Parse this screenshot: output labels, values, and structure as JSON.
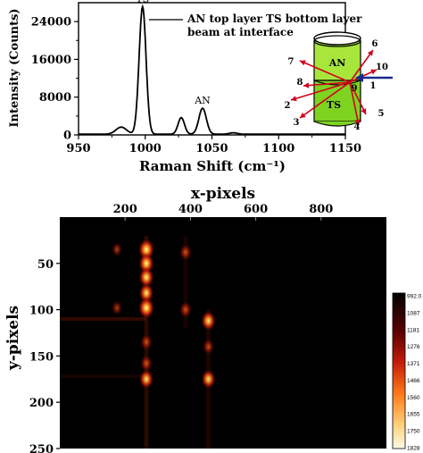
{
  "chart_data": [
    {
      "type": "line",
      "xlabel": "Raman Shift (cm⁻¹)",
      "ylabel": "Intensity (Counts)",
      "xlim": [
        950,
        1150
      ],
      "ylim": [
        0,
        28000
      ],
      "x_ticks": [
        950,
        1000,
        1050,
        1100,
        1150
      ],
      "y_ticks": [
        0,
        8000,
        16000,
        24000
      ],
      "peaks": [
        {
          "x": 982,
          "y": 1500
        },
        {
          "x": 998,
          "y": 27000,
          "label": "TS"
        },
        {
          "x": 1027,
          "y": 3500
        },
        {
          "x": 1043,
          "y": 5500,
          "label": "AN"
        },
        {
          "x": 1066,
          "y": 300
        }
      ],
      "series_color": "#000000",
      "annotation": {
        "line1": "AN top layer TS bottom layer",
        "line2": "beam at interface"
      },
      "inset": {
        "top_label": "AN",
        "bottom_label": "TS",
        "top_color": "#a8e63c",
        "bottom_color": "#7ed321",
        "arrow_color": "#d0021b",
        "beam_color": "#1a2a8a",
        "numbers": [
          "1",
          "2",
          "3",
          "4",
          "5",
          "6",
          "7",
          "8",
          "9",
          "10"
        ]
      }
    },
    {
      "type": "heatmap",
      "title": "x-pixels",
      "ylabel": "y-pixels",
      "xlim": [
        0,
        1000
      ],
      "ylim": [
        250,
        0
      ],
      "x_ticks": [
        200,
        400,
        600,
        800
      ],
      "y_ticks": [
        50,
        100,
        150,
        200,
        250
      ],
      "colorbar": {
        "labels": [
          "992.0",
          "1087",
          "1181",
          "1276",
          "1371",
          "1466",
          "1560",
          "1655",
          "1750",
          "1828"
        ]
      },
      "spots": [
        {
          "x": 265,
          "y": 35,
          "v": 1.0
        },
        {
          "x": 265,
          "y": 50,
          "v": 0.9
        },
        {
          "x": 265,
          "y": 65,
          "v": 0.85
        },
        {
          "x": 265,
          "y": 82,
          "v": 0.8
        },
        {
          "x": 265,
          "y": 98,
          "v": 1.0
        },
        {
          "x": 265,
          "y": 135,
          "v": 0.5
        },
        {
          "x": 265,
          "y": 158,
          "v": 0.55
        },
        {
          "x": 265,
          "y": 175,
          "v": 0.75
        },
        {
          "x": 385,
          "y": 38,
          "v": 0.55
        },
        {
          "x": 385,
          "y": 100,
          "v": 0.55
        },
        {
          "x": 455,
          "y": 112,
          "v": 0.8
        },
        {
          "x": 455,
          "y": 140,
          "v": 0.45
        },
        {
          "x": 455,
          "y": 175,
          "v": 0.75
        },
        {
          "x": 175,
          "y": 35,
          "v": 0.3
        },
        {
          "x": 175,
          "y": 98,
          "v": 0.3
        }
      ],
      "streaks": [
        {
          "y": 110,
          "x0": 0,
          "x1": 265,
          "v": 0.35
        },
        {
          "y": 172,
          "x0": 0,
          "x1": 265,
          "v": 0.15
        },
        {
          "x": 265,
          "y0": 20,
          "y1": 250,
          "v": 0.3
        },
        {
          "x": 455,
          "y0": 100,
          "y1": 250,
          "v": 0.2
        },
        {
          "x": 385,
          "y0": 20,
          "y1": 120,
          "v": 0.15
        }
      ]
    }
  ]
}
